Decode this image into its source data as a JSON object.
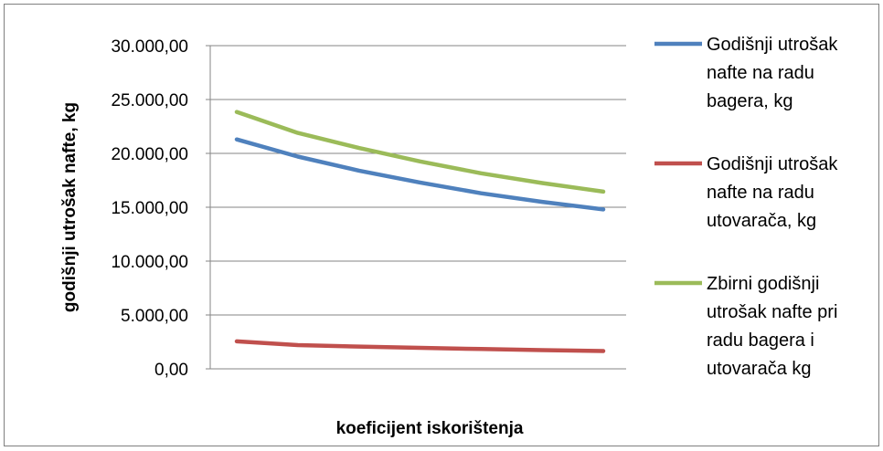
{
  "chart_data": {
    "type": "line",
    "xlabel": "koeficijent iskorištenja",
    "ylabel": "godišnji utrošak nafte, kg",
    "ylim": [
      0,
      30000
    ],
    "yticks": [
      0,
      5000,
      10000,
      15000,
      20000,
      25000,
      30000
    ],
    "ytick_labels": [
      "0,00",
      "5.000,00",
      "10.000,00",
      "15.000,00",
      "20.000,00",
      "25.000,00",
      "30.000,00"
    ],
    "grid": true,
    "legend_position": "right",
    "series": [
      {
        "name": "Godišnji utrošak nafte na radu bagera, kg",
        "legend_lines": [
          "Godišnji utrošak",
          "nafte na radu",
          "bagera, kg"
        ],
        "color": "#4F81BD",
        "values": [
          21300,
          19700,
          18400,
          17300,
          16300,
          15500,
          14800
        ]
      },
      {
        "name": "Godišnji utrošak nafte na radu utovarača, kg",
        "legend_lines": [
          "Godišnji utrošak",
          "nafte na radu",
          "utovarača, kg"
        ],
        "color": "#C0504D",
        "values": [
          2550,
          2200,
          2070,
          1950,
          1840,
          1740,
          1650
        ]
      },
      {
        "name": "Zbirni godišnji utrošak nafte pri radu bagera i utovarača kg",
        "legend_lines": [
          "Zbirni godišnji",
          "utrošak nafte pri",
          "radu bagera i",
          "utovarača kg"
        ],
        "color": "#9BBB59",
        "values": [
          23850,
          21900,
          20500,
          19250,
          18150,
          17250,
          16450
        ]
      }
    ]
  }
}
